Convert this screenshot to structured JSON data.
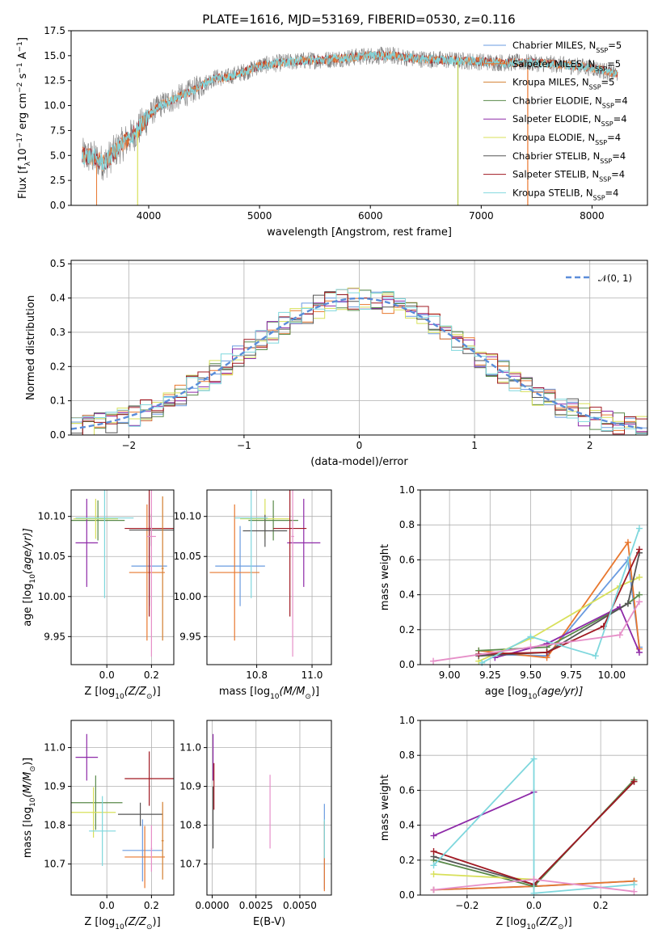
{
  "figure": {
    "title": "PLATE=1616, MJD=53169, FIBERID=0530, z=0.116"
  },
  "colors": {
    "series": [
      "#6a9be0",
      "#e8772e",
      "#d37f30",
      "#5a8a4a",
      "#8e2aa8",
      "#d8e05a",
      "#555555",
      "#a01822",
      "#7fd7dd",
      "#e68fc8",
      "#b8cc4a",
      "#333333"
    ],
    "gauss": "#5b8dd9",
    "data": "#808080"
  },
  "chart_data": [
    {
      "id": "spectrum",
      "type": "line",
      "title": "PLATE=1616, MJD=53169, FIBERID=0530, z=0.116",
      "xlabel": "wavelength [Angstrom, rest frame]",
      "ylabel": "Flux [f",
      "ylabel_sub": "λ",
      "ylabel_rest": "10",
      "ylabel_exp": "−17",
      "ylabel_tail": " erg cm",
      "ylabel_exp2": "−2",
      "ylabel_tail2": " s",
      "ylabel_exp3": "−1",
      "ylabel_tail3": " A",
      "ylabel_exp4": "−1",
      "ylabel_end": "]",
      "xlim": [
        3300,
        8500
      ],
      "ylim": [
        0,
        17.5
      ],
      "xticks": [
        "4000",
        "5000",
        "6000",
        "7000",
        "8000"
      ],
      "yticks": [
        "0.0",
        "2.5",
        "5.0",
        "7.5",
        "10.0",
        "12.5",
        "15.0",
        "17.5"
      ],
      "xtick_values": [
        4000,
        5000,
        6000,
        7000,
        8000
      ],
      "ytick_values": [
        0,
        2.5,
        5,
        7.5,
        10,
        12.5,
        15,
        17.5
      ],
      "continuum_x": [
        3400,
        3500,
        3600,
        3700,
        3800,
        3900,
        4000,
        4100,
        4200,
        4300,
        4400,
        4500,
        4600,
        4700,
        4800,
        4900,
        5000,
        5200,
        5400,
        5600,
        5800,
        6000,
        6200,
        6400,
        6600,
        6800,
        7000,
        7200,
        7400,
        7600,
        7800,
        8000,
        8200
      ],
      "continuum_y": [
        5.0,
        4.8,
        4.2,
        5.5,
        6.5,
        7.5,
        9.0,
        10.0,
        10.5,
        11.0,
        11.5,
        12.2,
        12.8,
        12.8,
        13.2,
        13.5,
        14.0,
        14.3,
        14.5,
        14.6,
        14.8,
        15.0,
        15.0,
        14.7,
        14.6,
        14.5,
        14.4,
        14.3,
        14.3,
        14.2,
        14.0,
        13.8,
        13.2
      ],
      "spikes": [
        {
          "x": 3900,
          "color_index": 5
        },
        {
          "x": 6790,
          "color_index": 10
        },
        {
          "x": 7420,
          "color_index": 1
        }
      ],
      "legend": [
        {
          "label": "Chabrier MILES, N",
          "sub": "SSP",
          "tail": "=5",
          "color_index": 0
        },
        {
          "label": "Salpeter MILES, N",
          "sub": "SSP",
          "tail": "=5",
          "color_index": 1
        },
        {
          "label": "Kroupa MILES, N",
          "sub": "SSP",
          "tail": "=5",
          "color_index": 2
        },
        {
          "label": "Chabrier ELODIE, N",
          "sub": "SSP",
          "tail": "=4",
          "color_index": 3
        },
        {
          "label": "Salpeter ELODIE, N",
          "sub": "SSP",
          "tail": "=4",
          "color_index": 4
        },
        {
          "label": "Kroupa ELODIE, N",
          "sub": "SSP",
          "tail": "=4",
          "color_index": 5
        },
        {
          "label": "Chabrier STELIB, N",
          "sub": "SSP",
          "tail": "=4",
          "color_index": 6
        },
        {
          "label": "Salpeter STELIB, N",
          "sub": "SSP",
          "tail": "=4",
          "color_index": 7
        },
        {
          "label": "Kroupa STELIB, N",
          "sub": "SSP",
          "tail": "=4",
          "color_index": 8
        }
      ]
    },
    {
      "id": "residuals",
      "type": "histogram",
      "xlabel": "(data-model)/error",
      "ylabel": "Normed distribution",
      "xlim": [
        -2.5,
        2.5
      ],
      "ylim": [
        0,
        0.51
      ],
      "xticks": [
        "−2",
        "−1",
        "0",
        "1",
        "2"
      ],
      "xtick_values": [
        -2,
        -1,
        0,
        1,
        2
      ],
      "yticks": [
        "0.0",
        "0.1",
        "0.2",
        "0.3",
        "0.4",
        "0.5"
      ],
      "ytick_values": [
        0,
        0.1,
        0.2,
        0.3,
        0.4,
        0.5
      ],
      "bin_width": 0.1,
      "legend": {
        "label": "𝒩(0, 1)"
      },
      "histograms": [
        {
          "color_index": 0,
          "jitter": 1
        },
        {
          "color_index": 1,
          "jitter": 2
        },
        {
          "color_index": 3,
          "jitter": 3
        },
        {
          "color_index": 4,
          "jitter": 4
        },
        {
          "color_index": 5,
          "jitter": 5
        },
        {
          "color_index": 6,
          "jitter": 6
        },
        {
          "color_index": 7,
          "jitter": 7
        },
        {
          "color_index": 8,
          "jitter": 8
        }
      ]
    },
    {
      "id": "age-vs-Z",
      "type": "errorbar",
      "xlabel": "Z [log",
      "xlabel_sub": "10",
      "xlabel_tail": "(Z/Z",
      "xlabel_sun": "⊙",
      "xlabel_end": ")]",
      "ylabel": "age  [log",
      "ylabel_sub": "10",
      "ylabel_tail": "(age/yr)]",
      "xlim": [
        -0.16,
        0.3
      ],
      "ylim": [
        9.915,
        10.133
      ],
      "xticks": [
        "0.0",
        "0.2"
      ],
      "xtick_values": [
        0,
        0.2
      ],
      "yticks": [
        "9.95",
        "10.00",
        "10.05",
        "10.10"
      ],
      "ytick_values": [
        9.95,
        10.0,
        10.05,
        10.1
      ],
      "points": [
        {
          "x": 0.19,
          "y": 10.038,
          "xerr": 0.08,
          "yerr": 0.05,
          "color_index": 0
        },
        {
          "x": 0.18,
          "y": 10.03,
          "xerr": 0.08,
          "yerr": 0.085,
          "color_index": 1
        },
        {
          "x": -0.04,
          "y": 10.095,
          "xerr": 0.12,
          "yerr": 0.025,
          "color_index": 3
        },
        {
          "x": -0.09,
          "y": 10.067,
          "xerr": 0.05,
          "yerr": 0.055,
          "color_index": 4
        },
        {
          "x": -0.05,
          "y": 10.097,
          "xerr": 0.1,
          "yerr": 0.025,
          "color_index": 5
        },
        {
          "x": 0.2,
          "y": 10.083,
          "xerr": 0.1,
          "yerr": 0.02,
          "color_index": 6
        },
        {
          "x": 0.19,
          "y": 10.085,
          "xerr": 0.11,
          "yerr": 0.11,
          "color_index": 7
        },
        {
          "x": -0.01,
          "y": 10.098,
          "xerr": 0.13,
          "yerr": 0.1,
          "color_index": 8
        },
        {
          "x": 0.2,
          "y": 10.075,
          "xerr": 0.02,
          "yerr": 0.15,
          "color_index": 9
        },
        {
          "x": 0.25,
          "y": 10.035,
          "xerr": 0.005,
          "yerr": 0.09,
          "color_index": 2
        }
      ]
    },
    {
      "id": "age-vs-mass",
      "type": "errorbar",
      "xlabel": "mass [log",
      "xlabel_sub": "10",
      "xlabel_tail": "(M/M",
      "xlabel_sun": "⊙",
      "xlabel_end": ")]",
      "xlim": [
        10.62,
        11.07
      ],
      "ylim": [
        9.915,
        10.133
      ],
      "xticks": [
        "10.8",
        "11.0"
      ],
      "xtick_values": [
        10.8,
        11.0
      ],
      "yticks": [
        "9.95",
        "10.00",
        "10.05",
        "10.10"
      ],
      "ytick_values": [
        9.95,
        10.0,
        10.05,
        10.1
      ],
      "points": [
        {
          "x": 10.74,
          "y": 10.038,
          "xerr": 0.09,
          "yerr": 0.05,
          "color_index": 0
        },
        {
          "x": 10.72,
          "y": 10.03,
          "xerr": 0.09,
          "yerr": 0.085,
          "color_index": 1
        },
        {
          "x": 10.86,
          "y": 10.095,
          "xerr": 0.09,
          "yerr": 0.025,
          "color_index": 3
        },
        {
          "x": 10.97,
          "y": 10.067,
          "xerr": 0.06,
          "yerr": 0.055,
          "color_index": 4
        },
        {
          "x": 10.83,
          "y": 10.097,
          "xerr": 0.09,
          "yerr": 0.025,
          "color_index": 5
        },
        {
          "x": 10.83,
          "y": 10.082,
          "xerr": 0.08,
          "yerr": 0.02,
          "color_index": 6
        },
        {
          "x": 10.92,
          "y": 10.085,
          "xerr": 0.06,
          "yerr": 0.11,
          "color_index": 7
        },
        {
          "x": 10.78,
          "y": 10.098,
          "xerr": 0.06,
          "yerr": 0.1,
          "color_index": 8
        },
        {
          "x": 10.93,
          "y": 10.075,
          "xerr": 0.005,
          "yerr": 0.15,
          "color_index": 9
        }
      ]
    },
    {
      "id": "mass-weight-vs-age",
      "type": "line",
      "xlabel": "age  [log",
      "xlabel_sub": "10",
      "xlabel_tail": "(age/yr)]",
      "ylabel": "mass weight",
      "xlim": [
        8.82,
        10.22
      ],
      "ylim": [
        0,
        1.0
      ],
      "xticks": [
        "9.00",
        "9.25",
        "9.50",
        "9.75",
        "10.00"
      ],
      "xtick_values": [
        9.0,
        9.25,
        9.5,
        9.75,
        10.0
      ],
      "yticks": [
        "0.0",
        "0.2",
        "0.4",
        "0.6",
        "0.8",
        "1.0"
      ],
      "ytick_values": [
        0,
        0.2,
        0.4,
        0.6,
        0.8,
        1.0
      ],
      "series": [
        {
          "color_index": 0,
          "x": [
            9.18,
            9.6,
            10.1,
            10.17
          ],
          "y": [
            0.06,
            0.05,
            0.6,
            0.1
          ]
        },
        {
          "color_index": 1,
          "x": [
            9.18,
            9.6,
            10.1,
            10.17
          ],
          "y": [
            0.08,
            0.04,
            0.7,
            0.09
          ]
        },
        {
          "color_index": 3,
          "x": [
            9.18,
            9.6,
            10.1,
            10.17
          ],
          "y": [
            0.08,
            0.1,
            0.35,
            0.4
          ]
        },
        {
          "color_index": 4,
          "x": [
            9.28,
            9.6,
            10.05,
            10.17
          ],
          "y": [
            0.04,
            0.12,
            0.33,
            0.07
          ]
        },
        {
          "color_index": 5,
          "x": [
            9.18,
            9.5,
            10.05,
            10.17
          ],
          "y": [
            0.02,
            0.15,
            0.45,
            0.5
          ]
        },
        {
          "color_index": 6,
          "x": [
            9.18,
            9.6,
            10.1,
            10.17
          ],
          "y": [
            0.05,
            0.07,
            0.35,
            0.64
          ]
        },
        {
          "color_index": 7,
          "x": [
            9.18,
            9.6,
            9.95,
            10.17
          ],
          "y": [
            0.06,
            0.07,
            0.22,
            0.66
          ]
        },
        {
          "color_index": 8,
          "x": [
            9.2,
            9.5,
            9.9,
            10.17
          ],
          "y": [
            0.01,
            0.16,
            0.05,
            0.78
          ]
        },
        {
          "color_index": 9,
          "x": [
            8.9,
            9.5,
            10.05,
            10.17
          ],
          "y": [
            0.02,
            0.1,
            0.17,
            0.36
          ]
        }
      ]
    },
    {
      "id": "mass-vs-Z",
      "type": "errorbar",
      "xlabel": "Z [log",
      "xlabel_sub": "10",
      "xlabel_tail": "(Z/Z",
      "xlabel_sun": "⊙",
      "xlabel_end": ")]",
      "ylabel": "mass [log",
      "ylabel_sub": "10",
      "ylabel_tail": "(M/M",
      "ylabel_sun": "⊙",
      "ylabel_end": ")]",
      "xlim": [
        -0.16,
        0.3
      ],
      "ylim": [
        10.62,
        11.07
      ],
      "xticks": [
        "0.0",
        "0.2"
      ],
      "xtick_values": [
        0,
        0.2
      ],
      "yticks": [
        "10.7",
        "10.8",
        "10.9",
        "11.0"
      ],
      "ytick_values": [
        10.7,
        10.8,
        10.9,
        11.0
      ],
      "points": [
        {
          "x": 0.16,
          "y": 10.735,
          "xerr": 0.09,
          "yerr": 0.08,
          "color_index": 0
        },
        {
          "x": 0.17,
          "y": 10.718,
          "xerr": 0.09,
          "yerr": 0.08,
          "color_index": 1
        },
        {
          "x": -0.05,
          "y": 10.858,
          "xerr": 0.12,
          "yerr": 0.07,
          "color_index": 3
        },
        {
          "x": -0.09,
          "y": 10.975,
          "xerr": 0.05,
          "yerr": 0.06,
          "color_index": 4
        },
        {
          "x": -0.06,
          "y": 10.833,
          "xerr": 0.1,
          "yerr": 0.065,
          "color_index": 5
        },
        {
          "x": 0.15,
          "y": 10.828,
          "xerr": 0.1,
          "yerr": 0.03,
          "color_index": 6
        },
        {
          "x": 0.19,
          "y": 10.92,
          "xerr": 0.11,
          "yerr": 0.07,
          "color_index": 7
        },
        {
          "x": -0.02,
          "y": 10.785,
          "xerr": 0.06,
          "yerr": 0.09,
          "color_index": 8
        },
        {
          "x": 0.25,
          "y": 10.76,
          "xerr": 0.005,
          "yerr": 0.1,
          "color_index": 2
        },
        {
          "x": 0.2,
          "y": 10.74,
          "xerr": 0.003,
          "yerr": 0.06,
          "color_index": 9
        }
      ]
    },
    {
      "id": "mass-vs-EBV",
      "type": "errorbar",
      "xlabel": "E(B-V)",
      "xlim": [
        -0.0003,
        0.0068
      ],
      "ylim": [
        10.62,
        11.07
      ],
      "xticks": [
        "0.0000",
        "0.0025",
        "0.0050"
      ],
      "xtick_values": [
        0,
        0.0025,
        0.005
      ],
      "yticks": [
        "10.7",
        "10.8",
        "10.9",
        "11.0"
      ],
      "ytick_values": [
        10.7,
        10.8,
        10.9,
        11.0
      ],
      "points": [
        {
          "x": 5e-05,
          "y": 10.975,
          "xerr": 0,
          "yerr": 0.06,
          "color_index": 4
        },
        {
          "x": 5e-05,
          "y": 10.82,
          "xerr": 0,
          "yerr": 0.08,
          "color_index": 6
        },
        {
          "x": 0.0001,
          "y": 10.9,
          "xerr": 0,
          "yerr": 0.06,
          "color_index": 7
        },
        {
          "x": 0.0033,
          "y": 10.835,
          "xerr": 0,
          "yerr": 0.095,
          "color_index": 9
        },
        {
          "x": 0.0064,
          "y": 10.745,
          "xerr": 0,
          "yerr": 0.11,
          "color_index": 0
        },
        {
          "x": 0.0064,
          "y": 10.72,
          "xerr": 0,
          "yerr": 0.09,
          "color_index": 1
        },
        {
          "x": 0.0064,
          "y": 10.765,
          "xerr": 0,
          "yerr": 0.05,
          "color_index": 8
        }
      ]
    },
    {
      "id": "mass-weight-vs-Z",
      "type": "line",
      "xlabel": "Z [log",
      "xlabel_sub": "10",
      "xlabel_tail": "(Z/Z",
      "xlabel_sun": "⊙",
      "xlabel_end": ")]",
      "ylabel": "mass weight",
      "xlim": [
        -0.34,
        0.34
      ],
      "ylim": [
        0,
        1.0
      ],
      "xticks": [
        "−0.2",
        "0.0",
        "0.2"
      ],
      "xtick_values": [
        -0.2,
        0,
        0.2
      ],
      "yticks": [
        "0.0",
        "0.2",
        "0.4",
        "0.6",
        "0.8",
        "1.0"
      ],
      "ytick_values": [
        0,
        0.2,
        0.4,
        0.6,
        0.8,
        1.0
      ],
      "series": [
        {
          "color_index": 0,
          "x": [
            -0.3,
            0.0,
            0.3
          ],
          "y": [
            0.03,
            0.05,
            0.08
          ]
        },
        {
          "color_index": 1,
          "x": [
            -0.3,
            0.0,
            0.3
          ],
          "y": [
            0.03,
            0.05,
            0.08
          ]
        },
        {
          "color_index": 3,
          "x": [
            -0.3,
            0.0,
            0.3
          ],
          "y": [
            0.2,
            0.05,
            0.66
          ]
        },
        {
          "color_index": 4,
          "x": [
            -0.3,
            0.0
          ],
          "y": [
            0.34,
            0.59
          ]
        },
        {
          "color_index": 5,
          "x": [
            -0.3,
            0.0
          ],
          "y": [
            0.12,
            0.09
          ]
        },
        {
          "color_index": 6,
          "x": [
            -0.3,
            0.0,
            0.3
          ],
          "y": [
            0.22,
            0.06,
            0.65
          ]
        },
        {
          "color_index": 7,
          "x": [
            -0.3,
            0.0,
            0.3
          ],
          "y": [
            0.25,
            0.06,
            0.65
          ]
        },
        {
          "color_index": 8,
          "x": [
            -0.3,
            0.0,
            0.0,
            0.3
          ],
          "y": [
            0.17,
            0.78,
            0.01,
            0.06
          ]
        },
        {
          "color_index": 9,
          "x": [
            -0.3,
            0.0,
            0.3
          ],
          "y": [
            0.03,
            0.09,
            0.02
          ]
        }
      ]
    }
  ]
}
